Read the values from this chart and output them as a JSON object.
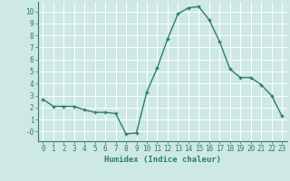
{
  "x": [
    0,
    1,
    2,
    3,
    4,
    5,
    6,
    7,
    8,
    9,
    10,
    11,
    12,
    13,
    14,
    15,
    16,
    17,
    18,
    19,
    20,
    21,
    22,
    23
  ],
  "y": [
    2.7,
    2.1,
    2.1,
    2.1,
    1.8,
    1.6,
    1.6,
    1.5,
    -0.2,
    -0.1,
    3.3,
    5.3,
    7.7,
    9.8,
    10.3,
    10.4,
    9.3,
    7.5,
    5.2,
    4.5,
    4.5,
    3.9,
    3.0,
    1.3
  ],
  "line_color": "#2e7d6e",
  "marker": "+",
  "marker_size": 3,
  "marker_linewidth": 1.0,
  "line_width": 1.0,
  "xlabel": "Humidex (Indice chaleur)",
  "xlabel_fontsize": 6.5,
  "yticks": [
    0,
    1,
    2,
    3,
    4,
    5,
    6,
    7,
    8,
    9,
    10
  ],
  "ytick_labels": [
    "-0",
    "1",
    "2",
    "3",
    "4",
    "5",
    "6",
    "7",
    "8",
    "9",
    "10"
  ],
  "ylim": [
    -0.8,
    10.8
  ],
  "xlim": [
    -0.5,
    23.5
  ],
  "background_color": "#cde8e5",
  "grid_color": "#ffffff",
  "tick_fontsize": 5.5,
  "spine_color": "#2e7d6e"
}
